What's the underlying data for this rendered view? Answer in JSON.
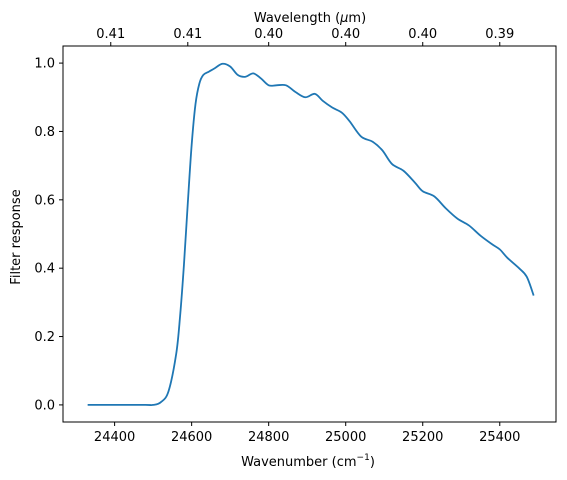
{
  "chart_data": {
    "type": "line",
    "xlabel": "Wavenumber (cm",
    "xlabel_superscript": "−1",
    "xlabel_suffix": ")",
    "ylabel": "Filter response",
    "top_axis_label": "Wavelength (",
    "top_axis_label_mu": "μ",
    "top_axis_label_suffix": "m)",
    "xlim": [
      24266,
      25546
    ],
    "ylim": [
      -0.05,
      1.05
    ],
    "x_ticks": [
      24400,
      24600,
      24800,
      25000,
      25200,
      25400
    ],
    "x_tick_labels": [
      "24400",
      "24600",
      "24800",
      "25000",
      "25200",
      "25400"
    ],
    "y_ticks": [
      0.0,
      0.2,
      0.4,
      0.6,
      0.8,
      1.0
    ],
    "y_tick_labels": [
      "0.0",
      "0.2",
      "0.4",
      "0.6",
      "0.8",
      "1.0"
    ],
    "top_tick_wavenumbers": [
      24390,
      24590,
      24800,
      25000,
      25200,
      25400
    ],
    "top_tick_labels": [
      "0.41",
      "0.41",
      "0.40",
      "0.40",
      "0.40",
      "0.39"
    ],
    "grid": false,
    "line_color": "#1f77b4",
    "series": [
      {
        "x": [
          24330,
          24400,
          24480,
          24500,
          24520,
          24540,
          24560,
          24570,
          24580,
          24590,
          24600,
          24610,
          24620,
          24630,
          24645,
          24660,
          24680,
          24700,
          24720,
          24740,
          24760,
          24780,
          24800,
          24820,
          24845,
          24870,
          24895,
          24920,
          24940,
          24965,
          24990,
          25010,
          25040,
          25070,
          25095,
          25120,
          25150,
          25180,
          25200,
          25230,
          25260,
          25290,
          25320,
          25350,
          25380,
          25400,
          25420,
          25450,
          25470,
          25488
        ],
        "y": [
          0.0,
          0.0,
          0.0,
          0.0,
          0.008,
          0.04,
          0.15,
          0.26,
          0.41,
          0.59,
          0.76,
          0.88,
          0.94,
          0.965,
          0.975,
          0.985,
          0.998,
          0.99,
          0.965,
          0.96,
          0.97,
          0.955,
          0.935,
          0.935,
          0.935,
          0.915,
          0.9,
          0.91,
          0.89,
          0.87,
          0.855,
          0.83,
          0.785,
          0.77,
          0.745,
          0.705,
          0.685,
          0.65,
          0.625,
          0.61,
          0.575,
          0.545,
          0.525,
          0.495,
          0.47,
          0.455,
          0.43,
          0.4,
          0.375,
          0.32
        ]
      }
    ]
  }
}
